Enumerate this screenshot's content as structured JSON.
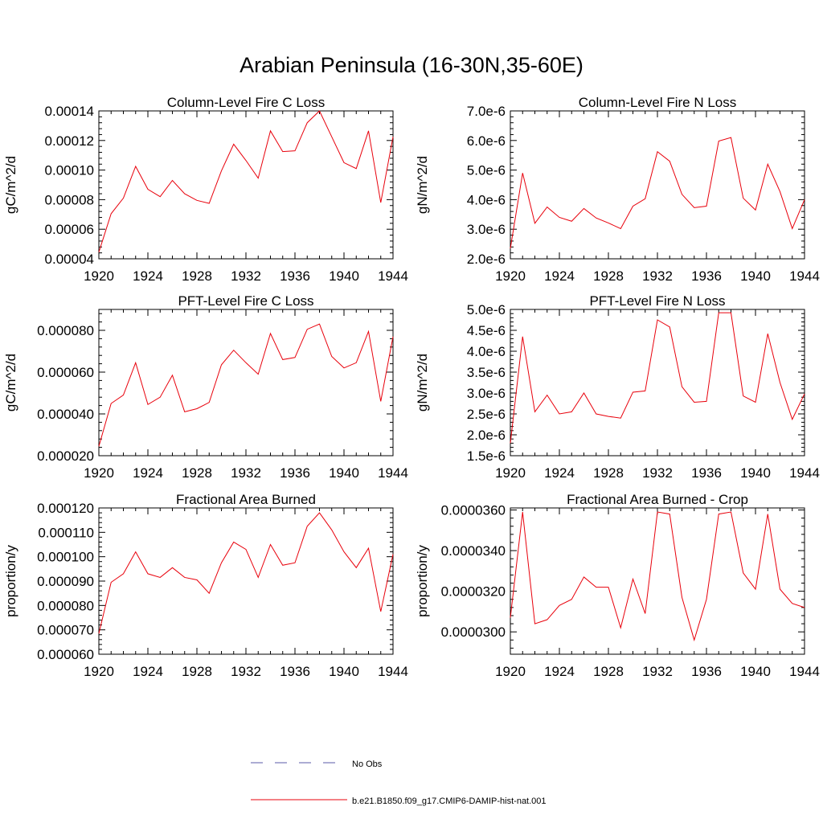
{
  "figure": {
    "title": "Arabian Peninsula (16-30N,35-60E)"
  },
  "legend": {
    "obs_label": "No Obs",
    "model_label": "b.e21.B1850.f09_g17.CMIP6-DAMIP-hist-nat.001",
    "obs_color": "#5a5aa8",
    "model_color": "#e8000b"
  },
  "chart_data": [
    {
      "type": "line",
      "title": "Column-Level Fire C Loss",
      "ylabel": "gC/m^2/d",
      "xlim": [
        1920,
        1944
      ],
      "ylim": [
        4e-05,
        0.00014
      ],
      "xticks": [
        "1920",
        "1924",
        "1928",
        "1932",
        "1936",
        "1940",
        "1944"
      ],
      "yticks": [
        4e-05,
        6e-05,
        8e-05,
        0.0001,
        0.00012,
        0.00014
      ],
      "yticklabels": [
        "0.00004",
        "0.00006",
        "0.00008",
        "0.00010",
        "0.00012",
        "0.00014"
      ],
      "x": [
        1920,
        1921,
        1922,
        1923,
        1924,
        1925,
        1926,
        1927,
        1928,
        1929,
        1930,
        1931,
        1932,
        1933,
        1934,
        1935,
        1936,
        1937,
        1938,
        1939,
        1940,
        1941,
        1942,
        1943,
        1944
      ],
      "series": [
        {
          "name": "b.e21.B1850.f09_g17.CMIP6-DAMIP-hist-nat.001",
          "values": [
            4.45e-05,
            7.05e-05,
            8.1e-05,
            0.0001025,
            8.7e-05,
            8.2e-05,
            9.3e-05,
            8.4e-05,
            7.95e-05,
            7.75e-05,
            9.95e-05,
            0.0001175,
            0.0001065,
            9.45e-05,
            0.0001265,
            0.0001125,
            0.000113,
            0.000132,
            0.00014,
            0.0001225,
            0.000105,
            0.000101,
            0.0001265,
            7.8e-05,
            0.0001225
          ]
        }
      ]
    },
    {
      "type": "line",
      "title": "Column-Level Fire N Loss",
      "ylabel": "gN/m^2/d",
      "xlim": [
        1920,
        1944
      ],
      "ylim": [
        2e-06,
        7e-06
      ],
      "xticks": [
        "1920",
        "1924",
        "1928",
        "1932",
        "1936",
        "1940",
        "1944"
      ],
      "yticks": [
        2e-06,
        3e-06,
        4e-06,
        5e-06,
        6e-06,
        7e-06
      ],
      "yticklabels": [
        "2.0e-6",
        "3.0e-6",
        "4.0e-6",
        "5.0e-6",
        "6.0e-6",
        "7.0e-6"
      ],
      "x": [
        1920,
        1921,
        1922,
        1923,
        1924,
        1925,
        1926,
        1927,
        1928,
        1929,
        1930,
        1931,
        1932,
        1933,
        1934,
        1935,
        1936,
        1937,
        1938,
        1939,
        1940,
        1941,
        1942,
        1943,
        1944
      ],
      "series": [
        {
          "name": "b.e21.B1850.f09_g17.CMIP6-DAMIP-hist-nat.001",
          "values": [
            2.35e-06,
            4.9e-06,
            3.2e-06,
            3.75e-06,
            3.4e-06,
            3.27e-06,
            3.7e-06,
            3.38e-06,
            3.21e-06,
            3.02e-06,
            3.78e-06,
            4.03e-06,
            5.62e-06,
            5.3e-06,
            4.18e-06,
            3.73e-06,
            3.78e-06,
            5.98e-06,
            6.1e-06,
            4.05e-06,
            3.65e-06,
            5.2e-06,
            4.27e-06,
            3.02e-06,
            4e-06
          ]
        }
      ]
    },
    {
      "type": "line",
      "title": "PFT-Level Fire C Loss",
      "ylabel": "gC/m^2/d",
      "xlim": [
        1920,
        1944
      ],
      "ylim": [
        2e-05,
        9e-05
      ],
      "xticks": [
        "1920",
        "1924",
        "1928",
        "1932",
        "1936",
        "1940",
        "1944"
      ],
      "yticks": [
        2e-05,
        4e-05,
        6e-05,
        8e-05
      ],
      "yticklabels": [
        "0.000020",
        "0.000040",
        "0.000060",
        "0.000080"
      ],
      "x": [
        1920,
        1921,
        1922,
        1923,
        1924,
        1925,
        1926,
        1927,
        1928,
        1929,
        1930,
        1931,
        1932,
        1933,
        1934,
        1935,
        1936,
        1937,
        1938,
        1939,
        1940,
        1941,
        1942,
        1943,
        1944
      ],
      "series": [
        {
          "name": "b.e21.B1850.f09_g17.CMIP6-DAMIP-hist-nat.001",
          "values": [
            2.45e-05,
            4.5e-05,
            4.9e-05,
            6.45e-05,
            4.45e-05,
            4.8e-05,
            5.85e-05,
            4.1e-05,
            4.25e-05,
            4.55e-05,
            6.35e-05,
            7.05e-05,
            6.45e-05,
            5.9e-05,
            7.85e-05,
            6.6e-05,
            6.7e-05,
            8.05e-05,
            8.3e-05,
            6.75e-05,
            6.2e-05,
            6.45e-05,
            7.95e-05,
            4.6e-05,
            7.7e-05
          ]
        }
      ]
    },
    {
      "type": "line",
      "title": "PFT-Level Fire N Loss",
      "ylabel": "gN/m^2/d",
      "xlim": [
        1920,
        1944
      ],
      "ylim": [
        1.5e-06,
        5e-06
      ],
      "xticks": [
        "1920",
        "1924",
        "1928",
        "1932",
        "1936",
        "1940",
        "1944"
      ],
      "yticks": [
        1.5e-06,
        2e-06,
        2.5e-06,
        3e-06,
        3.5e-06,
        4e-06,
        4.5e-06,
        5e-06
      ],
      "yticklabels": [
        "1.5e-6",
        "2.0e-6",
        "2.5e-6",
        "3.0e-6",
        "3.5e-6",
        "4.0e-6",
        "4.5e-6",
        "5.0e-6"
      ],
      "x": [
        1920,
        1921,
        1922,
        1923,
        1924,
        1925,
        1926,
        1927,
        1928,
        1929,
        1930,
        1931,
        1932,
        1933,
        1934,
        1935,
        1936,
        1937,
        1938,
        1939,
        1940,
        1941,
        1942,
        1943,
        1944
      ],
      "series": [
        {
          "name": "b.e21.B1850.f09_g17.CMIP6-DAMIP-hist-nat.001",
          "values": [
            1.8e-06,
            4.35e-06,
            2.55e-06,
            2.95e-06,
            2.5e-06,
            2.55e-06,
            3e-06,
            2.5e-06,
            2.44e-06,
            2.4e-06,
            3.02e-06,
            3.05e-06,
            4.75e-06,
            4.58e-06,
            3.15e-06,
            2.78e-06,
            2.8e-06,
            4.92e-06,
            4.92e-06,
            2.93e-06,
            2.78e-06,
            4.42e-06,
            3.25e-06,
            2.37e-06,
            2.98e-06
          ]
        }
      ]
    },
    {
      "type": "line",
      "title": "Fractional Area Burned",
      "ylabel": "proportion/y",
      "xlim": [
        1920,
        1944
      ],
      "ylim": [
        6e-05,
        0.00012
      ],
      "xticks": [
        "1920",
        "1924",
        "1928",
        "1932",
        "1936",
        "1940",
        "1944"
      ],
      "yticks": [
        6e-05,
        7e-05,
        8e-05,
        9e-05,
        0.0001,
        0.00011,
        0.00012
      ],
      "yticklabels": [
        "0.000060",
        "0.000070",
        "0.000080",
        "0.000090",
        "0.000100",
        "0.000110",
        "0.000120"
      ],
      "x": [
        1920,
        1921,
        1922,
        1923,
        1924,
        1925,
        1926,
        1927,
        1928,
        1929,
        1930,
        1931,
        1932,
        1933,
        1934,
        1935,
        1936,
        1937,
        1938,
        1939,
        1940,
        1941,
        1942,
        1943,
        1944
      ],
      "series": [
        {
          "name": "b.e21.B1850.f09_g17.CMIP6-DAMIP-hist-nat.001",
          "values": [
            6.85e-05,
            8.95e-05,
            9.3e-05,
            0.000102,
            9.3e-05,
            9.15e-05,
            9.55e-05,
            9.15e-05,
            9.05e-05,
            8.5e-05,
            9.75e-05,
            0.000106,
            0.000103,
            9.15e-05,
            0.000105,
            9.65e-05,
            9.75e-05,
            0.0001125,
            0.000118,
            0.000111,
            0.000102,
            9.55e-05,
            0.0001035,
            7.75e-05,
            0.000101
          ]
        }
      ]
    },
    {
      "type": "line",
      "title": "Fractional Area Burned - Crop",
      "ylabel": "proportion/y",
      "xlim": [
        1920,
        1944
      ],
      "ylim": [
        2.89e-05,
        3.61e-05
      ],
      "xticks": [
        "1920",
        "1924",
        "1928",
        "1932",
        "1936",
        "1940",
        "1944"
      ],
      "yticks": [
        3e-05,
        3.2e-05,
        3.4e-05,
        3.6e-05
      ],
      "yticklabels": [
        "0.0000300",
        "0.0000320",
        "0.0000340",
        "0.0000360"
      ],
      "x": [
        1920,
        1921,
        1922,
        1923,
        1924,
        1925,
        1926,
        1927,
        1928,
        1929,
        1930,
        1931,
        1932,
        1933,
        1934,
        1935,
        1936,
        1937,
        1938,
        1939,
        1940,
        1941,
        1942,
        1943,
        1944
      ],
      "series": [
        {
          "name": "b.e21.B1850.f09_g17.CMIP6-DAMIP-hist-nat.001",
          "values": [
            3.07e-05,
            3.59e-05,
            3.04e-05,
            3.06e-05,
            3.13e-05,
            3.16e-05,
            3.27e-05,
            3.22e-05,
            3.22e-05,
            3.02e-05,
            3.26e-05,
            3.09e-05,
            3.59e-05,
            3.58e-05,
            3.17e-05,
            2.96e-05,
            3.16e-05,
            3.58e-05,
            3.59e-05,
            3.29e-05,
            3.21e-05,
            3.58e-05,
            3.21e-05,
            3.14e-05,
            3.12e-05
          ]
        }
      ]
    }
  ]
}
